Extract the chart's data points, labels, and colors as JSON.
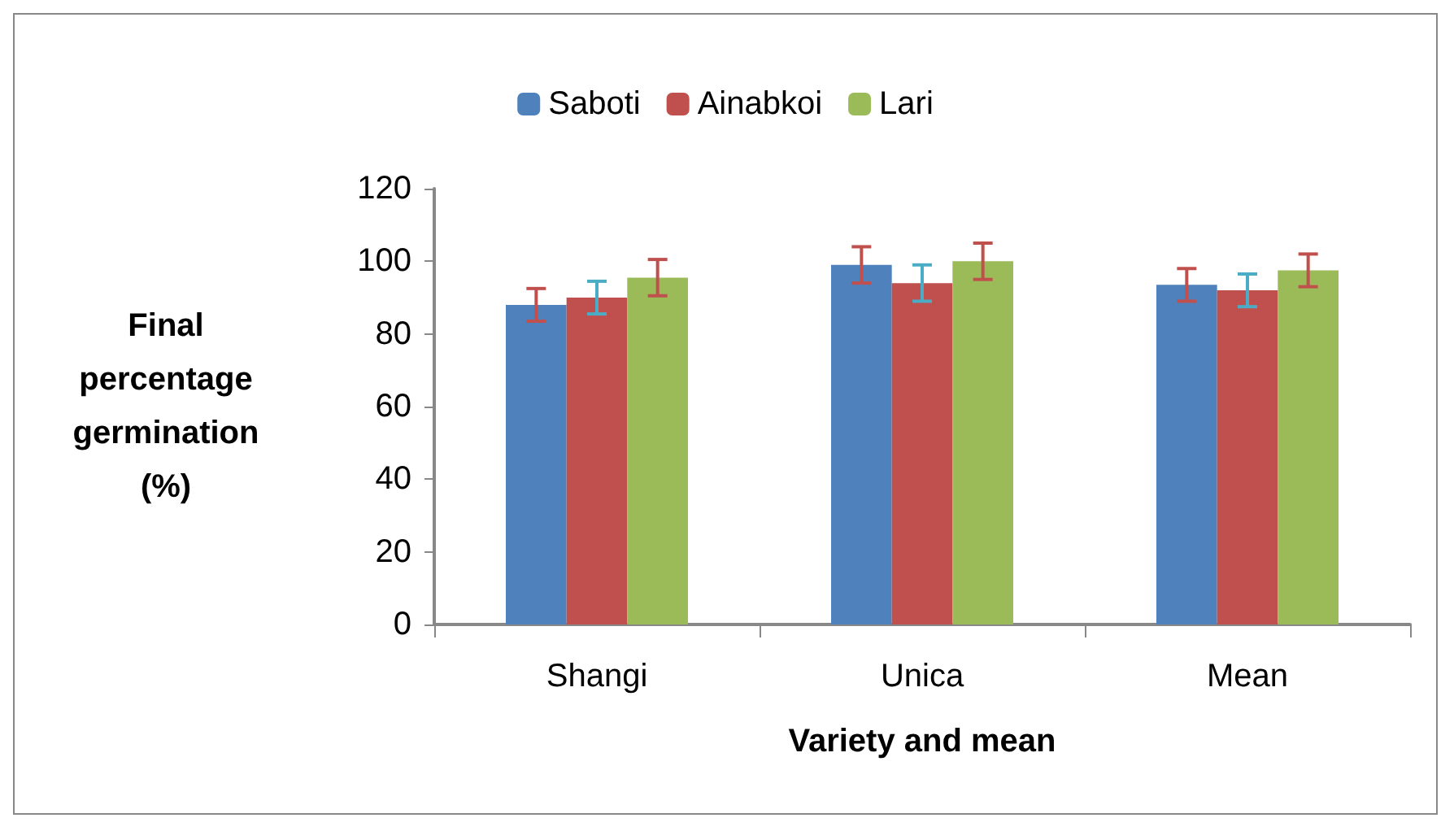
{
  "chart_data": {
    "type": "bar",
    "xlabel": "Variety and mean",
    "ylabel": "Final percentage germination (%)",
    "categories": [
      "Shangi",
      "Unica",
      "Mean"
    ],
    "series": [
      {
        "name": "Saboti",
        "color": "#4f81bd",
        "values": [
          88,
          99,
          93.5
        ],
        "errors": [
          4.5,
          5,
          4.5
        ]
      },
      {
        "name": "Ainabkoi",
        "color": "#c0504d",
        "values": [
          90,
          94,
          92
        ],
        "errors": [
          4.5,
          5,
          4.5
        ]
      },
      {
        "name": "Lari",
        "color": "#9bbb59",
        "values": [
          95.5,
          100,
          97.5
        ],
        "errors": [
          5,
          5,
          4.5
        ]
      }
    ],
    "ylim": [
      0,
      120
    ],
    "yticks": [
      0,
      20,
      40,
      60,
      80,
      100,
      120
    ],
    "grid": false,
    "legend": "top"
  }
}
